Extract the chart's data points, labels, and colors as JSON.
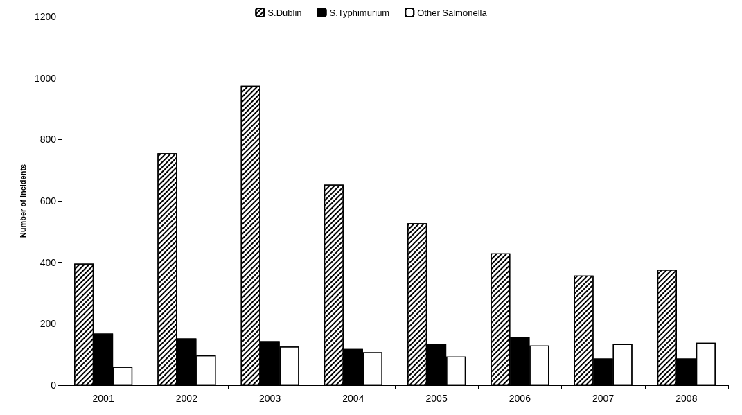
{
  "chart_data": {
    "type": "bar",
    "ylabel": "Number of incidents",
    "categories": [
      "2001",
      "2002",
      "2003",
      "2004",
      "2005",
      "2006",
      "2007",
      "2008"
    ],
    "series": [
      {
        "name": "S.Dublin",
        "color": "#ffffff",
        "values": [
          396,
          755,
          975,
          653,
          527,
          429,
          357,
          376
        ]
      },
      {
        "name": "S.Typhimurium",
        "color": "#000000",
        "values": [
          168,
          152,
          143,
          118,
          135,
          158,
          87,
          87
        ]
      },
      {
        "name": "Other Salmonella",
        "color": "#ffffff",
        "values": [
          60,
          97,
          126,
          107,
          93,
          129,
          134,
          138
        ]
      }
    ],
    "ylim": [
      0,
      1200
    ],
    "yticks": [
      0,
      200,
      400,
      600,
      800,
      1000,
      1200
    ],
    "grid": false,
    "legend": "top"
  }
}
